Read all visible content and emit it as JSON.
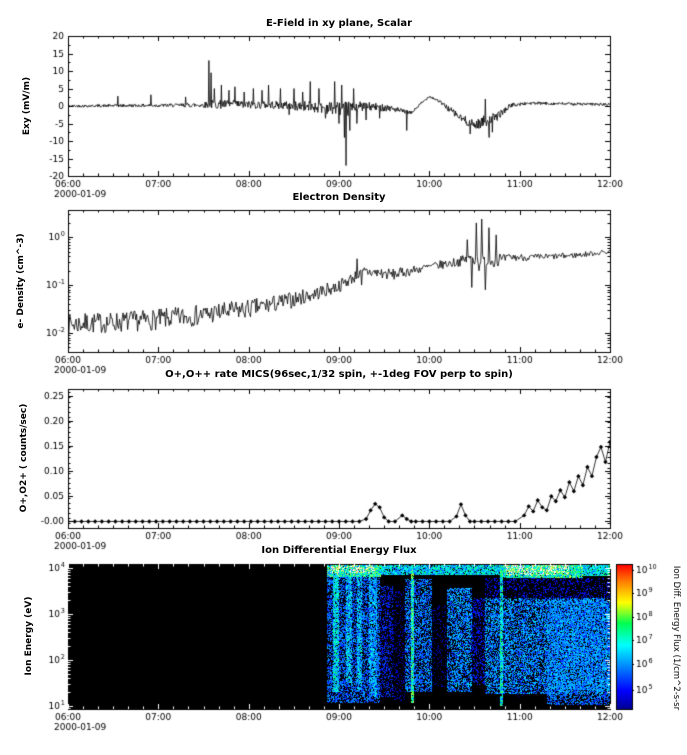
{
  "figure": {
    "background": "#ffffff",
    "line_color": "#000000"
  },
  "x_axis": {
    "xlim_hours": [
      6,
      12
    ],
    "major_ticks": [
      6,
      7,
      8,
      9,
      10,
      11,
      12
    ],
    "tick_labels": [
      "06:00",
      "07:00",
      "08:00",
      "09:00",
      "10:00",
      "11:00",
      "12:00"
    ],
    "minor_per_hour": 6,
    "date_label": "2000-01-09"
  },
  "chart_data": [
    {
      "type": "line",
      "title": "E-Field in xy plane, Scalar",
      "ylabel": "Exy (mV/m)",
      "yscale": "linear",
      "ylim": [
        -20,
        20
      ],
      "yticks": [
        20,
        15,
        10,
        5,
        0,
        -5,
        -10,
        -15,
        -20
      ],
      "ytick_labels": [
        "20",
        "15",
        "10",
        "5",
        "0",
        "-5",
        "-10",
        "-15",
        "-20"
      ],
      "y_minor_step": 2.5,
      "color": "#000000",
      "synthesis": {
        "dt": 0.006,
        "space": "linear",
        "baseline": [
          [
            6.0,
            0,
            0.35
          ],
          [
            7.2,
            0.2,
            0.5
          ],
          [
            7.5,
            0.3,
            0.8
          ],
          [
            7.6,
            0.5,
            1.3
          ],
          [
            8.3,
            0.3,
            1.1
          ],
          [
            8.9,
            -0.5,
            1.8
          ],
          [
            9.1,
            -1.0,
            2.2
          ],
          [
            9.2,
            0,
            1.4
          ],
          [
            9.55,
            -0.5,
            1.0
          ],
          [
            9.7,
            -1.5,
            0.7
          ],
          [
            9.8,
            -2.0,
            0.4
          ],
          [
            9.9,
            0.5,
            0.4
          ],
          [
            10.0,
            2.8,
            0.35
          ],
          [
            10.1,
            1.5,
            0.4
          ],
          [
            10.2,
            -0.5,
            0.8
          ],
          [
            10.35,
            -3.5,
            1.2
          ],
          [
            10.5,
            -5.5,
            1.3
          ],
          [
            10.6,
            -4.5,
            1.8
          ],
          [
            10.75,
            -3.0,
            1.2
          ],
          [
            10.9,
            0.2,
            0.6
          ],
          [
            11.1,
            0.8,
            0.45
          ],
          [
            12.0,
            0.4,
            0.4
          ]
        ],
        "spikes": [
          [
            6.55,
            2.8
          ],
          [
            6.92,
            3.2
          ],
          [
            7.3,
            2.6
          ],
          [
            7.56,
            13
          ],
          [
            7.585,
            9.5
          ],
          [
            7.62,
            5
          ],
          [
            7.7,
            6
          ],
          [
            7.78,
            4.5
          ],
          [
            7.85,
            5.5
          ],
          [
            7.95,
            4
          ],
          [
            8.05,
            5
          ],
          [
            8.15,
            4.5
          ],
          [
            8.22,
            6
          ],
          [
            8.35,
            5
          ],
          [
            8.45,
            -2.5
          ],
          [
            8.5,
            5
          ],
          [
            8.6,
            4
          ],
          [
            8.68,
            7
          ],
          [
            8.78,
            5
          ],
          [
            8.85,
            -3.5
          ],
          [
            8.95,
            7
          ],
          [
            9.0,
            -5
          ],
          [
            9.03,
            6
          ],
          [
            9.06,
            -9
          ],
          [
            9.08,
            -17
          ],
          [
            9.12,
            -7
          ],
          [
            9.16,
            5
          ],
          [
            9.2,
            -5
          ],
          [
            9.3,
            -4
          ],
          [
            9.45,
            -3.5
          ],
          [
            9.75,
            -7
          ],
          [
            10.45,
            -8
          ],
          [
            10.62,
            2
          ],
          [
            10.66,
            -9
          ],
          [
            10.7,
            -7.5
          ]
        ]
      }
    },
    {
      "type": "line",
      "title": "Electron Density",
      "ylabel": "e- Density (cm^-3)",
      "yscale": "log",
      "ylog_range": [
        -2.4,
        0.57
      ],
      "ytick_exps": [
        0,
        -1,
        -2
      ],
      "color": "#000000",
      "synthesis": {
        "dt": 0.01,
        "space": "log10",
        "baseline": [
          [
            6.0,
            -1.82,
            0.22
          ],
          [
            6.5,
            -1.78,
            0.22
          ],
          [
            7.0,
            -1.72,
            0.22
          ],
          [
            7.5,
            -1.62,
            0.22
          ],
          [
            8.0,
            -1.5,
            0.2
          ],
          [
            8.4,
            -1.35,
            0.18
          ],
          [
            8.7,
            -1.2,
            0.15
          ],
          [
            9.0,
            -1.02,
            0.14
          ],
          [
            9.15,
            -0.85,
            0.12
          ],
          [
            9.3,
            -0.72,
            0.14
          ],
          [
            9.6,
            -0.78,
            0.12
          ],
          [
            9.8,
            -0.7,
            0.1
          ],
          [
            10.0,
            -0.62,
            0.09
          ],
          [
            10.3,
            -0.52,
            0.1
          ],
          [
            10.45,
            -0.45,
            0.12
          ],
          [
            10.75,
            -0.5,
            0.12
          ],
          [
            10.9,
            -0.42,
            0.08
          ],
          [
            11.2,
            -0.42,
            0.07
          ],
          [
            11.6,
            -0.38,
            0.06
          ],
          [
            12.0,
            -0.3,
            0.05
          ]
        ],
        "spikes": [
          [
            9.2,
            -0.45
          ],
          [
            9.25,
            -1.0
          ],
          [
            10.42,
            -0.05
          ],
          [
            10.47,
            -1.05
          ],
          [
            10.52,
            0.3
          ],
          [
            10.55,
            -0.7
          ],
          [
            10.58,
            0.38
          ],
          [
            10.62,
            -1.1
          ],
          [
            10.66,
            0.2
          ],
          [
            10.7,
            -0.5
          ],
          [
            10.74,
            0.05
          ],
          [
            10.78,
            -0.35
          ]
        ]
      }
    },
    {
      "type": "scatter-line",
      "title": "O+,O++ rate MICS(96sec,1/32 spin, +-1deg FOV perp to spin)",
      "ylabel": "O+,O2+ ( counts/sec)",
      "yscale": "linear",
      "ylim": [
        -0.013,
        0.263
      ],
      "yticks": [
        0.25,
        0.2,
        0.15,
        0.1,
        0.05,
        0
      ],
      "ytick_labels": [
        "0.25",
        "0.20",
        "0.15",
        "0.10",
        "0.05",
        "-0.00"
      ],
      "y_minor_step": 0.01,
      "color": "#000000",
      "sample_step": 0.075,
      "zero_segments": [
        [
          6.0,
          9.25
        ],
        [
          9.85,
          10.25
        ],
        [
          10.5,
          11.0
        ]
      ],
      "points": [
        [
          9.3,
          0.005
        ],
        [
          9.35,
          0.022
        ],
        [
          9.4,
          0.035
        ],
        [
          9.45,
          0.028
        ],
        [
          9.5,
          0.008
        ],
        [
          9.55,
          0.0
        ],
        [
          9.62,
          0.0
        ],
        [
          9.7,
          0.012
        ],
        [
          9.75,
          0.005
        ],
        [
          9.8,
          0.0
        ],
        [
          10.3,
          0.01
        ],
        [
          10.35,
          0.034
        ],
        [
          10.4,
          0.012
        ],
        [
          10.45,
          0.0
        ],
        [
          11.05,
          0.012
        ],
        [
          11.1,
          0.03
        ],
        [
          11.15,
          0.02
        ],
        [
          11.2,
          0.042
        ],
        [
          11.25,
          0.028
        ],
        [
          11.3,
          0.022
        ],
        [
          11.35,
          0.05
        ],
        [
          11.4,
          0.04
        ],
        [
          11.45,
          0.062
        ],
        [
          11.5,
          0.048
        ],
        [
          11.55,
          0.078
        ],
        [
          11.6,
          0.06
        ],
        [
          11.65,
          0.09
        ],
        [
          11.7,
          0.072
        ],
        [
          11.75,
          0.108
        ],
        [
          11.8,
          0.09
        ],
        [
          11.85,
          0.128
        ],
        [
          11.9,
          0.148
        ],
        [
          11.95,
          0.118
        ],
        [
          12.0,
          0.158
        ]
      ]
    },
    {
      "type": "heatmap",
      "title": "Ion Differential Energy Flux",
      "ylabel": "Ion Energy (eV)",
      "yscale": "log",
      "ylog_range": [
        0.93,
        4.08
      ],
      "ytick_exps": [
        4,
        3,
        2,
        1
      ],
      "background_level": 0,
      "features": [
        [
          8.87,
          9.47,
          3.8,
          4.08,
          0.5,
          0.05
        ],
        [
          8.9,
          9.4,
          3.88,
          4.05,
          0.85,
          0.5
        ],
        [
          9.47,
          10.78,
          3.84,
          4.08,
          0.4,
          0.12
        ],
        [
          10.78,
          11.7,
          3.78,
          4.08,
          0.5,
          0.05
        ],
        [
          10.85,
          11.55,
          3.85,
          4.05,
          0.85,
          0.5
        ],
        [
          11.7,
          12.0,
          3.82,
          4.08,
          0.42,
          0.1
        ],
        [
          8.87,
          9.45,
          1.05,
          3.8,
          0.26,
          0.45
        ],
        [
          8.93,
          9.0,
          1.3,
          3.8,
          0.42,
          0.22
        ],
        [
          9.08,
          9.14,
          1.5,
          3.8,
          0.38,
          0.28
        ],
        [
          9.2,
          9.26,
          1.35,
          3.8,
          0.38,
          0.3
        ],
        [
          9.33,
          9.42,
          1.2,
          3.8,
          0.34,
          0.33
        ],
        [
          9.45,
          9.6,
          1.2,
          3.6,
          0.18,
          0.62
        ],
        [
          9.6,
          9.73,
          1.1,
          3.5,
          0.08,
          0.8
        ],
        [
          9.73,
          10.03,
          1.3,
          3.75,
          0.28,
          0.42
        ],
        [
          9.795,
          9.825,
          1.05,
          3.95,
          0.5,
          0.08
        ],
        [
          10.03,
          10.2,
          1.4,
          3.2,
          0.07,
          0.85
        ],
        [
          10.2,
          10.47,
          1.3,
          3.55,
          0.3,
          0.42
        ],
        [
          10.47,
          10.62,
          1.45,
          3.35,
          0.16,
          0.65
        ],
        [
          10.62,
          12.0,
          1.25,
          3.35,
          0.3,
          0.4
        ],
        [
          11.3,
          12.0,
          1.02,
          3.3,
          0.27,
          0.45
        ],
        [
          10.785,
          10.815,
          1.0,
          3.95,
          0.45,
          0.12
        ],
        [
          10.62,
          12.0,
          3.35,
          3.78,
          0.14,
          0.75
        ],
        [
          10.9,
          11.05,
          1.2,
          2.2,
          0.05,
          0.85
        ]
      ],
      "colorbar": {
        "label": "Ion Diff. Energy Flux (1/cm^2-s-sr",
        "ticks": [
          {
            "exp": 10,
            "frac": 0.958
          },
          {
            "exp": 9,
            "frac": 0.8
          },
          {
            "exp": 8,
            "frac": 0.634
          },
          {
            "exp": 7,
            "frac": 0.476
          },
          {
            "exp": 6,
            "frac": 0.31
          },
          {
            "exp": 5,
            "frac": 0.131
          }
        ]
      }
    }
  ]
}
